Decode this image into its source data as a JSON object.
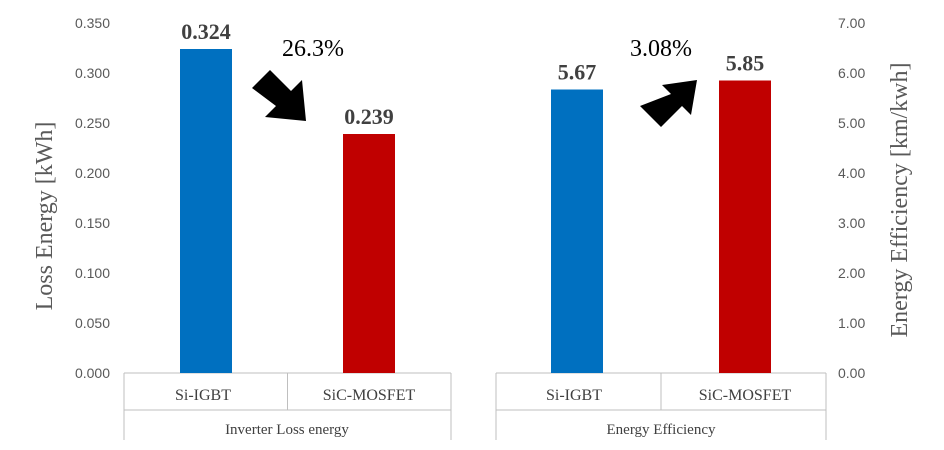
{
  "chart_data": [
    {
      "type": "bar",
      "group_label": "Inverter Loss energy",
      "ylabel": "Loss Energy [kWh]",
      "categories": [
        "Si-IGBT",
        "SiC-MOSFET"
      ],
      "values": [
        0.324,
        0.239
      ],
      "data_labels": [
        "0.324",
        "0.239"
      ],
      "ylim": [
        0,
        0.35
      ],
      "yticks": [
        "0.000",
        "0.050",
        "0.100",
        "0.150",
        "0.200",
        "0.250",
        "0.300",
        "0.350"
      ],
      "axis_side": "left",
      "annotation": {
        "text": "26.3%",
        "arrow": "down-right"
      }
    },
    {
      "type": "bar",
      "group_label": "Energy Efficiency",
      "ylabel": "Energy Efficiency [km/kwh]",
      "categories": [
        "Si-IGBT",
        "SiC-MOSFET"
      ],
      "values": [
        5.67,
        5.85
      ],
      "data_labels": [
        "5.67",
        "5.85"
      ],
      "ylim": [
        0,
        7
      ],
      "yticks": [
        "0.00",
        "1.00",
        "2.00",
        "3.00",
        "4.00",
        "5.00",
        "6.00",
        "7.00"
      ],
      "axis_side": "right",
      "annotation": {
        "text": "3.08%",
        "arrow": "up-right"
      }
    }
  ],
  "colors": {
    "Si-IGBT": "#0070c0",
    "SiC-MOSFET": "#c00000"
  }
}
